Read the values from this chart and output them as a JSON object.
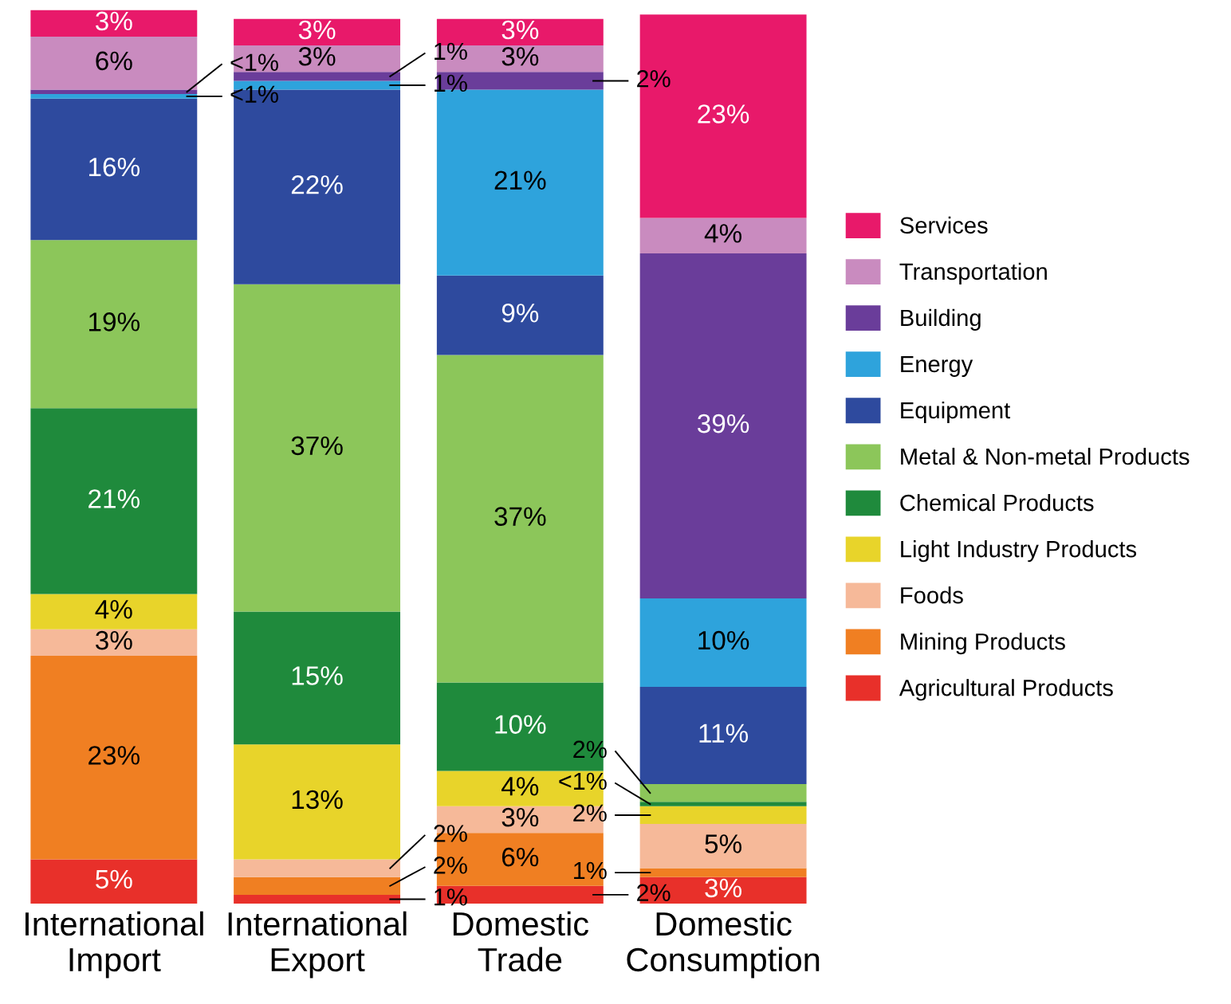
{
  "chart_data": {
    "type": "bar",
    "stacked": true,
    "data_labels": true,
    "legend": "right",
    "grid": false,
    "categories": [
      "International\nImport",
      "International\nExport",
      "Domestic\nTrade",
      "Domestic\nConsumption"
    ],
    "series": [
      {
        "name": "Agricultural Products",
        "color": "#e8302a",
        "values": [
          5,
          1,
          2,
          3
        ],
        "value_labels": [
          "5%",
          "1%",
          "2%",
          "3%"
        ]
      },
      {
        "name": "Mining Products",
        "color": "#f07f22",
        "values": [
          23,
          2,
          6,
          1
        ],
        "value_labels": [
          "23%",
          "2%",
          "6%",
          "1%"
        ]
      },
      {
        "name": "Foods",
        "color": "#f6b999",
        "values": [
          3,
          2,
          3,
          5
        ],
        "value_labels": [
          "3%",
          "2%",
          "3%",
          "5%"
        ]
      },
      {
        "name": "Light Industry Products",
        "color": "#e8d42a",
        "values": [
          4,
          13,
          4,
          2
        ],
        "value_labels": [
          "4%",
          "13%",
          "4%",
          "2%"
        ]
      },
      {
        "name": "Chemical Products",
        "color": "#1f8a3c",
        "values": [
          21,
          15,
          10,
          0.5
        ],
        "value_labels": [
          "21%",
          "15%",
          "10%",
          "<1%"
        ]
      },
      {
        "name": "Metal & Non-metal Products",
        "color": "#8cc65a",
        "values": [
          19,
          37,
          37,
          2
        ],
        "value_labels": [
          "19%",
          "37%",
          "37%",
          "2%"
        ]
      },
      {
        "name": "Equipment",
        "color": "#2e4a9e",
        "values": [
          16,
          22,
          9,
          11
        ],
        "value_labels": [
          "16%",
          "22%",
          "9%",
          "11%"
        ]
      },
      {
        "name": "Energy",
        "color": "#2ea3dc",
        "values": [
          0.5,
          1,
          21,
          10
        ],
        "value_labels": [
          "<1%",
          "1%",
          "21%",
          "10%"
        ]
      },
      {
        "name": "Building",
        "color": "#6a3d9a",
        "values": [
          0.5,
          1,
          2,
          39
        ],
        "value_labels": [
          "<1%",
          "1%",
          "2%",
          "39%"
        ]
      },
      {
        "name": "Transportation",
        "color": "#c98bbf",
        "values": [
          6,
          3,
          3,
          4
        ],
        "value_labels": [
          "6%",
          "3%",
          "3%",
          "4%"
        ]
      },
      {
        "name": "Services",
        "color": "#e8196a",
        "values": [
          3,
          3,
          3,
          23
        ],
        "value_labels": [
          "3%",
          "3%",
          "3%",
          "23%"
        ]
      }
    ]
  }
}
